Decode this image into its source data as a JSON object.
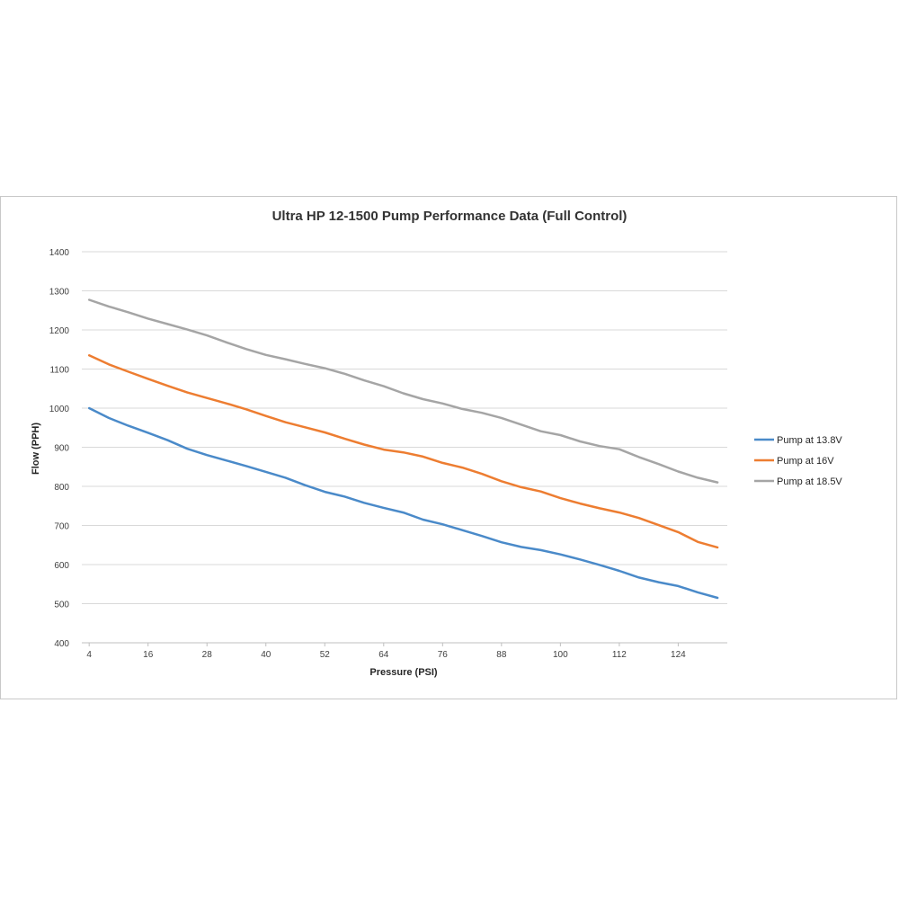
{
  "chart_data": {
    "type": "line",
    "title": "Ultra HP 12-1500 Pump Performance Data (Full Control)",
    "xlabel": "Pressure (PSI)",
    "ylabel": "Flow (PPH)",
    "x": [
      4,
      8,
      12,
      16,
      20,
      24,
      28,
      32,
      36,
      40,
      44,
      48,
      52,
      56,
      60,
      64,
      68,
      72,
      76,
      80,
      84,
      88,
      92,
      96,
      100,
      104,
      108,
      112,
      116,
      120,
      124,
      128,
      132
    ],
    "x_tick_labels": [
      "4",
      "16",
      "28",
      "40",
      "52",
      "64",
      "76",
      "88",
      "100",
      "112",
      "124"
    ],
    "x_ticks": [
      4,
      16,
      28,
      40,
      52,
      64,
      76,
      88,
      100,
      112,
      124
    ],
    "xlim": [
      2.5,
      134
    ],
    "ylim": [
      400,
      1400
    ],
    "y_ticks": [
      400,
      500,
      600,
      700,
      800,
      900,
      1000,
      1100,
      1200,
      1300,
      1400
    ],
    "y_tick_labels": [
      "400",
      "500",
      "600",
      "700",
      "800",
      "900",
      "1000",
      "1100",
      "1200",
      "1300",
      "1400"
    ],
    "grid": true,
    "legend_position": "right",
    "series": [
      {
        "name": "Pump at 13.8V",
        "color": "#4a8ac9",
        "values": [
          1000,
          975,
          955,
          937,
          918,
          896,
          880,
          866,
          852,
          837,
          822,
          803,
          786,
          774,
          758,
          745,
          733,
          715,
          703,
          688,
          673,
          657,
          645,
          637,
          626,
          613,
          599,
          584,
          567,
          555,
          545,
          529,
          515
        ]
      },
      {
        "name": "Pump at 16V",
        "color": "#ed7d31",
        "values": [
          1135,
          1112,
          1093,
          1075,
          1057,
          1040,
          1026,
          1012,
          997,
          980,
          964,
          951,
          938,
          922,
          907,
          894,
          887,
          876,
          860,
          848,
          832,
          813,
          798,
          787,
          770,
          756,
          744,
          733,
          719,
          701,
          683,
          658,
          644
        ]
      },
      {
        "name": "Pump at 18.5V",
        "color": "#a5a5a5",
        "values": [
          1277,
          1260,
          1245,
          1229,
          1215,
          1201,
          1186,
          1168,
          1151,
          1136,
          1125,
          1113,
          1102,
          1088,
          1071,
          1056,
          1038,
          1023,
          1012,
          998,
          988,
          975,
          958,
          941,
          931,
          915,
          903,
          895,
          875,
          857,
          838,
          822,
          810
        ]
      }
    ]
  }
}
